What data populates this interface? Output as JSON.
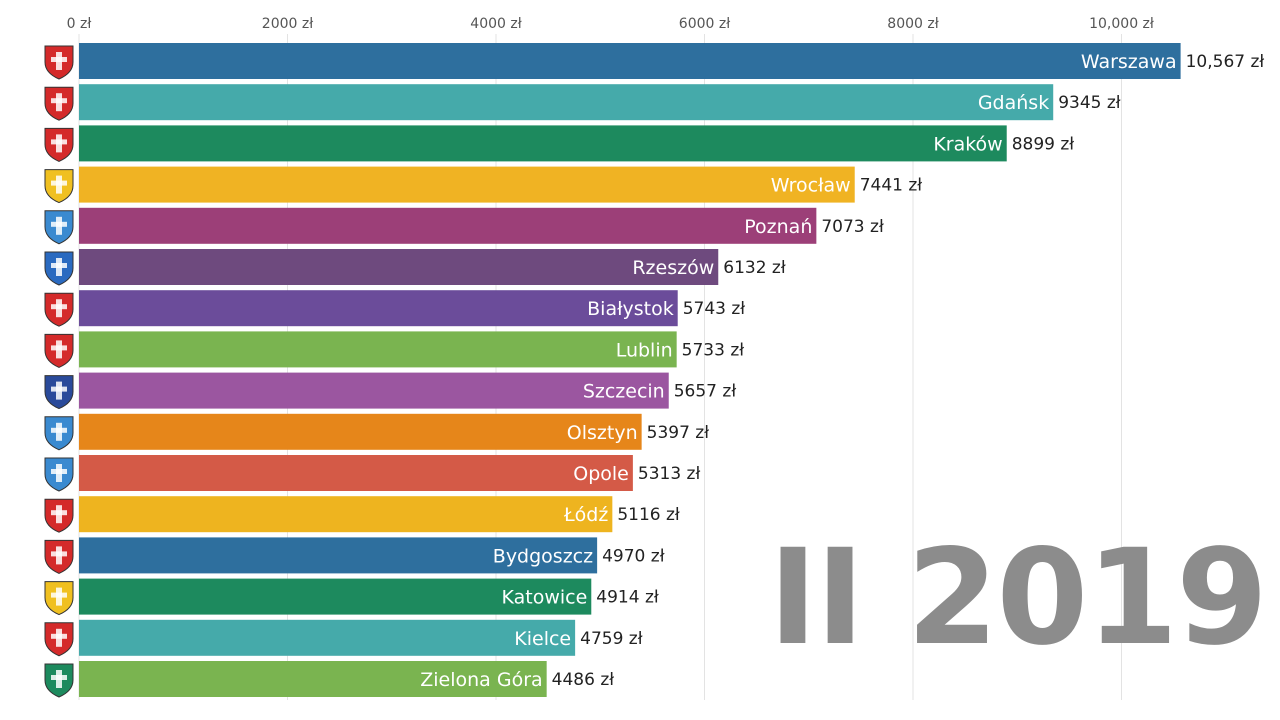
{
  "chart_data": {
    "type": "bar",
    "orientation": "horizontal",
    "period_label": "II 2019",
    "currency_suffix": " zł",
    "xlim": [
      0,
      11000
    ],
    "ticks": [
      {
        "value": 0,
        "label": "0 zł"
      },
      {
        "value": 2000,
        "label": "2000 zł"
      },
      {
        "value": 4000,
        "label": "4000 zł"
      },
      {
        "value": 6000,
        "label": "6000 zł"
      },
      {
        "value": 8000,
        "label": "8000 zł"
      },
      {
        "value": 10000,
        "label": "10,000 zł"
      }
    ],
    "grid": true,
    "categories": [
      "Warszawa",
      "Gdańsk",
      "Kraków",
      "Wrocław",
      "Poznań",
      "Rzeszów",
      "Białystok",
      "Lublin",
      "Szczecin",
      "Olsztyn",
      "Opole",
      "Łódź",
      "Bydgoszcz",
      "Katowice",
      "Kielce",
      "Zielona Góra"
    ],
    "values": [
      10567,
      9345,
      8899,
      7441,
      7073,
      6132,
      5743,
      5733,
      5657,
      5397,
      5313,
      5116,
      4970,
      4914,
      4759,
      4486
    ],
    "value_labels": [
      "10,567 zł",
      "9345 zł",
      "8899 zł",
      "7441 zł",
      "7073 zł",
      "6132 zł",
      "5743 zł",
      "5733 zł",
      "5657 zł",
      "5397 zł",
      "5313 zł",
      "5116 zł",
      "4970 zł",
      "4914 zł",
      "4759 zł",
      "4486 zł"
    ],
    "colors": [
      "#2e6f9e",
      "#45aaaa",
      "#1d8a5e",
      "#f0b323",
      "#9c3f78",
      "#6e4a7e",
      "#6b4c9a",
      "#7ab450",
      "#9b56a0",
      "#e6861a",
      "#d45a47",
      "#eeb41f",
      "#2e6f9e",
      "#1d8a5e",
      "#45aaaa",
      "#7ab450"
    ],
    "icons": [
      "warszawa-crest-icon",
      "gdansk-crest-icon",
      "krakow-crest-icon",
      "wroclaw-crest-icon",
      "poznan-crest-icon",
      "rzeszow-crest-icon",
      "bialystok-crest-icon",
      "lublin-crest-icon",
      "szczecin-crest-icon",
      "olsztyn-crest-icon",
      "opole-crest-icon",
      "lodz-crest-icon",
      "bydgoszcz-crest-icon",
      "katowice-crest-icon",
      "kielce-crest-icon",
      "zielona-gora-crest-icon"
    ],
    "icon_colors": [
      "#d42a2a",
      "#d42a2a",
      "#d42a2a",
      "#f0c020",
      "#3a8ad0",
      "#2a6ac0",
      "#d42a2a",
      "#d42a2a",
      "#2a4a9a",
      "#3a8ad0",
      "#3a8ad0",
      "#d42a2a",
      "#d42a2a",
      "#f0c020",
      "#d42a2a",
      "#1d8a5e"
    ]
  }
}
